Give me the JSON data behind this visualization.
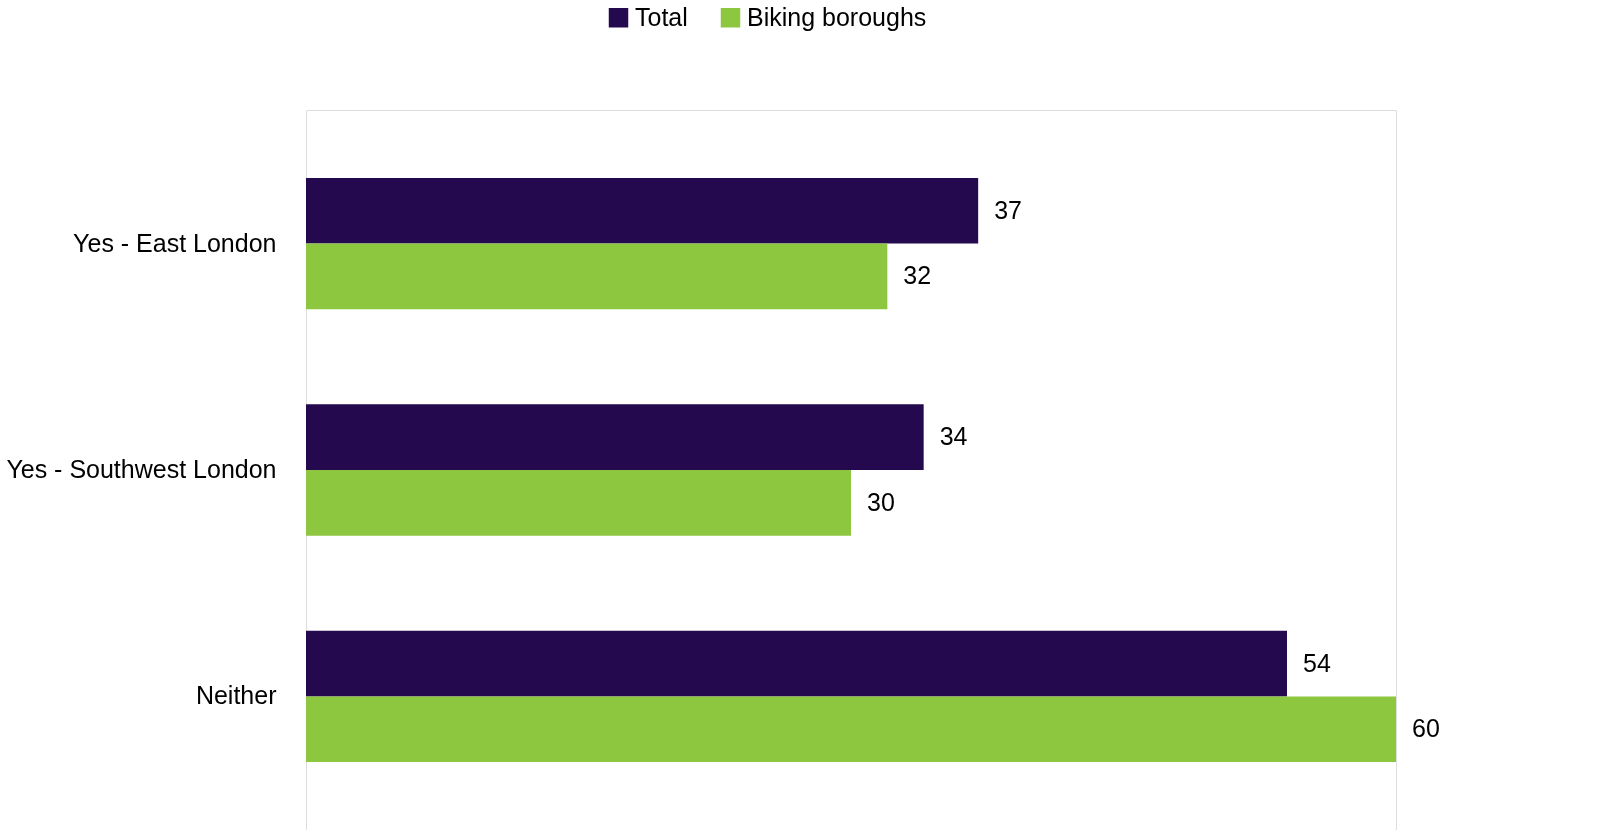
{
  "chart_data": {
    "type": "bar",
    "orientation": "horizontal",
    "categories": [
      "Yes - East London",
      "Yes - Southwest London",
      "Neither"
    ],
    "series": [
      {
        "name": "Total",
        "color": "#25094f",
        "values": [
          37,
          34,
          54
        ]
      },
      {
        "name": "Biking boroughs",
        "color": "#8dc63f",
        "values": [
          32,
          30,
          60
        ]
      }
    ],
    "data_labels": true,
    "legend": "top",
    "grid": false
  }
}
